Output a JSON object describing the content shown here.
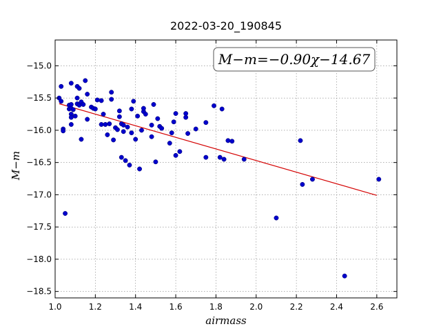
{
  "chart_data": {
    "type": "scatter",
    "title": "2022-03-20_190845",
    "xlabel": "airmass",
    "ylabel": "M−m",
    "xlim": [
      1.0,
      2.7
    ],
    "ylim": [
      -18.6,
      -14.6
    ],
    "y_inverted": true,
    "grid": true,
    "xticks": [
      1.0,
      1.2,
      1.4,
      1.6,
      1.8,
      2.0,
      2.2,
      2.4,
      2.6
    ],
    "xtick_labels": [
      "1.0",
      "1.2",
      "1.4",
      "1.6",
      "1.8",
      "2.0",
      "2.2",
      "2.4",
      "2.6"
    ],
    "yticks": [
      -15.0,
      -15.5,
      -16.0,
      -16.5,
      -17.0,
      -17.5,
      -18.0,
      -18.5
    ],
    "ytick_labels": [
      "−15.0",
      "−15.5",
      "−16.0",
      "−16.5",
      "−17.0",
      "−17.5",
      "−18.0",
      "−18.5"
    ],
    "annotation": "M−m=−0.90χ−14.67",
    "fit": {
      "slope": -0.9,
      "intercept": -14.67,
      "x_range": [
        1.02,
        2.6
      ],
      "color": "#d40000"
    },
    "point_color": "#0000cc",
    "points": [
      [
        1.02,
        -15.5
      ],
      [
        1.03,
        -15.32
      ],
      [
        1.03,
        -15.55
      ],
      [
        1.04,
        -15.98
      ],
      [
        1.04,
        -16.01
      ],
      [
        1.05,
        -17.29
      ],
      [
        1.07,
        -15.61
      ],
      [
        1.07,
        -15.67
      ],
      [
        1.08,
        -15.27
      ],
      [
        1.08,
        -15.6
      ],
      [
        1.08,
        -15.66
      ],
      [
        1.08,
        -15.75
      ],
      [
        1.08,
        -15.8
      ],
      [
        1.08,
        -15.91
      ],
      [
        1.09,
        -15.68
      ],
      [
        1.1,
        -15.78
      ],
      [
        1.11,
        -15.32
      ],
      [
        1.11,
        -15.5
      ],
      [
        1.11,
        -15.59
      ],
      [
        1.12,
        -15.35
      ],
      [
        1.12,
        -15.61
      ],
      [
        1.13,
        -16.14
      ],
      [
        1.13,
        -15.56
      ],
      [
        1.14,
        -15.6
      ],
      [
        1.15,
        -15.23
      ],
      [
        1.16,
        -15.83
      ],
      [
        1.16,
        -15.44
      ],
      [
        1.18,
        -15.64
      ],
      [
        1.19,
        -15.66
      ],
      [
        1.2,
        -15.67
      ],
      [
        1.21,
        -15.53
      ],
      [
        1.23,
        -15.54
      ],
      [
        1.23,
        -15.91
      ],
      [
        1.24,
        -15.75
      ],
      [
        1.25,
        -15.91
      ],
      [
        1.26,
        -16.07
      ],
      [
        1.27,
        -15.9
      ],
      [
        1.28,
        -15.41
      ],
      [
        1.28,
        -15.52
      ],
      [
        1.29,
        -16.15
      ],
      [
        1.3,
        -15.96
      ],
      [
        1.31,
        -15.99
      ],
      [
        1.32,
        -15.7
      ],
      [
        1.32,
        -15.79
      ],
      [
        1.33,
        -16.42
      ],
      [
        1.33,
        -15.9
      ],
      [
        1.34,
        -16.02
      ],
      [
        1.34,
        -15.92
      ],
      [
        1.35,
        -16.47
      ],
      [
        1.36,
        -15.95
      ],
      [
        1.37,
        -16.54
      ],
      [
        1.38,
        -16.04
      ],
      [
        1.38,
        -15.67
      ],
      [
        1.39,
        -15.55
      ],
      [
        1.4,
        -16.14
      ],
      [
        1.41,
        -15.78
      ],
      [
        1.42,
        -16.6
      ],
      [
        1.43,
        -16.0
      ],
      [
        1.44,
        -15.71
      ],
      [
        1.44,
        -15.66
      ],
      [
        1.45,
        -15.75
      ],
      [
        1.48,
        -16.1
      ],
      [
        1.48,
        -15.92
      ],
      [
        1.49,
        -15.6
      ],
      [
        1.5,
        -16.49
      ],
      [
        1.51,
        -15.82
      ],
      [
        1.52,
        -15.94
      ],
      [
        1.53,
        -15.97
      ],
      [
        1.57,
        -16.2
      ],
      [
        1.58,
        -16.04
      ],
      [
        1.59,
        -15.87
      ],
      [
        1.6,
        -16.39
      ],
      [
        1.6,
        -15.74
      ],
      [
        1.62,
        -16.33
      ],
      [
        1.65,
        -15.8
      ],
      [
        1.65,
        -15.74
      ],
      [
        1.66,
        -16.05
      ],
      [
        1.7,
        -15.98
      ],
      [
        1.75,
        -16.42
      ],
      [
        1.75,
        -15.88
      ],
      [
        1.79,
        -15.62
      ],
      [
        1.82,
        -16.42
      ],
      [
        1.83,
        -15.67
      ],
      [
        1.84,
        -16.45
      ],
      [
        1.86,
        -16.16
      ],
      [
        1.88,
        -16.17
      ],
      [
        1.94,
        -16.45
      ],
      [
        2.1,
        -17.36
      ],
      [
        2.22,
        -16.16
      ],
      [
        2.23,
        -16.84
      ],
      [
        2.28,
        -16.76
      ],
      [
        2.44,
        -18.26
      ],
      [
        2.61,
        -16.76
      ]
    ]
  }
}
